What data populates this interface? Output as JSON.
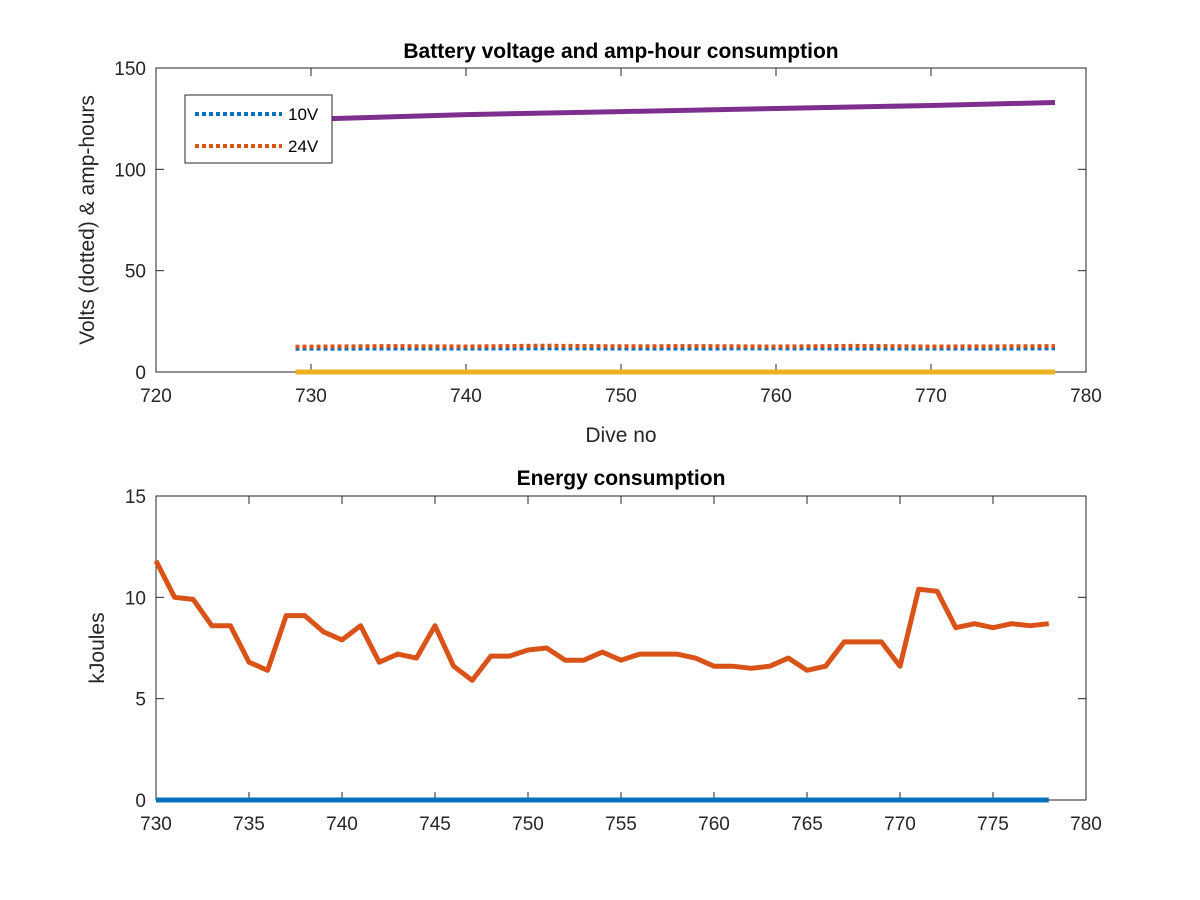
{
  "chart_data": [
    {
      "type": "line",
      "title": "Battery voltage and amp-hour consumption",
      "xlabel": "Dive no",
      "ylabel": "Volts (dotted) & amp-hours",
      "xlim": [
        720,
        780
      ],
      "ylim": [
        0,
        150
      ],
      "xticks": [
        "720",
        "730",
        "740",
        "750",
        "760",
        "770",
        "780"
      ],
      "yticks": [
        "0",
        "50",
        "100",
        "150"
      ],
      "grid": false,
      "legend": {
        "placement": "top-left",
        "entries": [
          "10V",
          "24V"
        ]
      },
      "series": [
        {
          "name": "10V",
          "style": "dotted",
          "color": "#0072BD",
          "x": [
            729,
            735,
            740,
            745,
            750,
            755,
            760,
            765,
            770,
            775,
            778
          ],
          "y": [
            11.5,
            11.6,
            11.6,
            11.7,
            11.6,
            11.6,
            11.7,
            11.6,
            11.6,
            11.6,
            11.7
          ]
        },
        {
          "name": "24V",
          "style": "dotted",
          "color": "#D95319",
          "x": [
            729,
            735,
            740,
            745,
            750,
            755,
            760,
            765,
            770,
            775,
            778
          ],
          "y": [
            12.5,
            12.8,
            12.6,
            13.0,
            12.7,
            12.8,
            12.6,
            12.9,
            12.6,
            12.7,
            12.8
          ]
        },
        {
          "style": "solid",
          "color": "#7E2F8E",
          "x": [
            731,
            740,
            750,
            760,
            770,
            778
          ],
          "y": [
            125,
            127,
            128.5,
            130,
            131.5,
            133
          ]
        },
        {
          "style": "solid",
          "color": "#EDB120",
          "x": [
            729,
            778
          ],
          "y": [
            0,
            0
          ]
        }
      ]
    },
    {
      "type": "line",
      "title": "Energy consumption",
      "xlabel": "",
      "ylabel": "kJoules",
      "xlim": [
        730,
        780
      ],
      "ylim": [
        0,
        15
      ],
      "xticks": [
        "730",
        "735",
        "740",
        "745",
        "750",
        "755",
        "760",
        "765",
        "770",
        "775",
        "780"
      ],
      "yticks": [
        "0",
        "5",
        "10",
        "15"
      ],
      "grid": false,
      "series": [
        {
          "style": "solid",
          "color": "#D95319",
          "x": [
            730,
            731,
            732,
            733,
            734,
            735,
            736,
            737,
            738,
            739,
            740,
            741,
            742,
            743,
            744,
            745,
            746,
            747,
            748,
            749,
            750,
            751,
            752,
            753,
            754,
            755,
            756,
            757,
            758,
            759,
            760,
            761,
            762,
            763,
            764,
            765,
            766,
            767,
            768,
            769,
            770,
            771,
            772,
            773,
            774,
            775,
            776,
            777,
            778
          ],
          "y": [
            11.8,
            10.0,
            9.9,
            8.6,
            8.6,
            6.8,
            6.4,
            9.1,
            9.1,
            8.3,
            7.9,
            8.6,
            6.8,
            7.2,
            7.0,
            8.6,
            6.6,
            5.9,
            7.1,
            7.1,
            7.4,
            7.5,
            6.9,
            6.9,
            7.3,
            6.9,
            7.2,
            7.2,
            7.2,
            7.0,
            6.6,
            6.6,
            6.5,
            6.6,
            7.0,
            6.4,
            6.6,
            7.8,
            7.8,
            7.8,
            6.6,
            10.4,
            10.3,
            8.5,
            8.7,
            8.5,
            8.7,
            8.6,
            8.7
          ]
        },
        {
          "style": "solid",
          "color": "#0072BD",
          "x": [
            730,
            778
          ],
          "y": [
            0,
            0
          ]
        }
      ]
    }
  ]
}
